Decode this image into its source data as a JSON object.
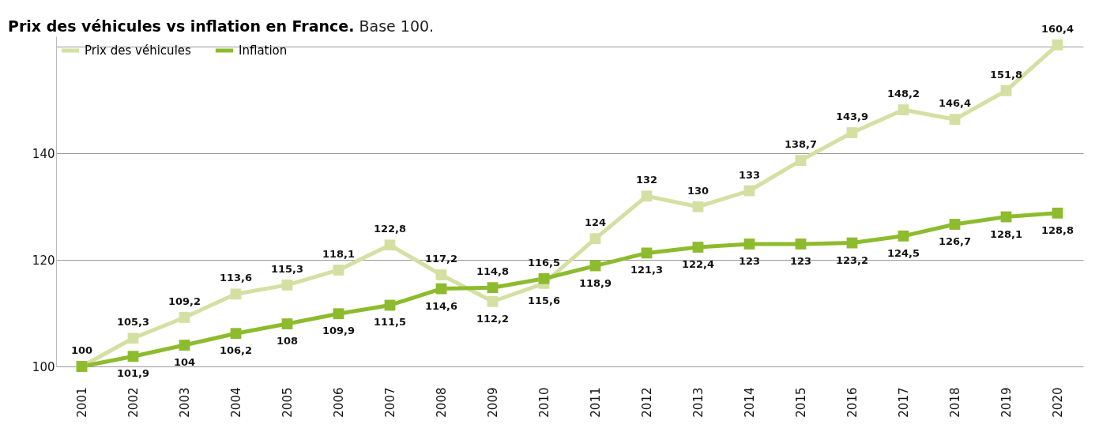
{
  "chart_data": {
    "type": "line",
    "title": "Prix des véhicules vs inflation en France.",
    "subtitle": "Base 100.",
    "categories": [
      "2001",
      "2002",
      "2003",
      "2004",
      "2005",
      "2006",
      "2007",
      "2008",
      "2009",
      "2010",
      "2011",
      "2012",
      "2013",
      "2014",
      "2015",
      "2016",
      "2017",
      "2018",
      "2019",
      "2020"
    ],
    "series": [
      {
        "name": "Prix des véhicules",
        "color": "#d4e0a2",
        "values": [
          100,
          105.3,
          109.2,
          113.6,
          115.3,
          118.1,
          122.8,
          117.2,
          112.2,
          115.6,
          124,
          132,
          130,
          133,
          138.7,
          143.9,
          148.2,
          146.4,
          151.8,
          160.4
        ],
        "value_labels": [
          "100",
          "105,3",
          "109,2",
          "113,6",
          "115,3",
          "118,1",
          "122,8",
          "117,2",
          "112,2",
          "115,6",
          "124",
          "132",
          "130",
          "133",
          "138,7",
          "143,9",
          "148,2",
          "146,4",
          "151,8",
          "160,4"
        ]
      },
      {
        "name": "Inflation",
        "color": "#8dbb2e",
        "values": [
          100,
          101.9,
          104,
          106.2,
          108,
          109.9,
          111.5,
          114.6,
          114.8,
          116.5,
          118.9,
          121.3,
          122.4,
          123,
          123,
          123.2,
          124.5,
          126.7,
          128.1,
          128.8
        ],
        "value_labels": [
          null,
          "101,9",
          "104",
          "106,2",
          "108",
          "109,9",
          "111,5",
          "114,6",
          "114,8",
          "116,5",
          "118,9",
          "121,3",
          "122,4",
          "123",
          "123",
          "123,2",
          "124,5",
          "126,7",
          "128,1",
          "128,8"
        ]
      }
    ],
    "ylim": [
      100,
      162
    ],
    "yticks": [
      100,
      120,
      140,
      {
        "value": 160,
        "label": null
      }
    ],
    "grid": "y",
    "legend": "top left",
    "marker": "square",
    "line_style": "solid"
  }
}
